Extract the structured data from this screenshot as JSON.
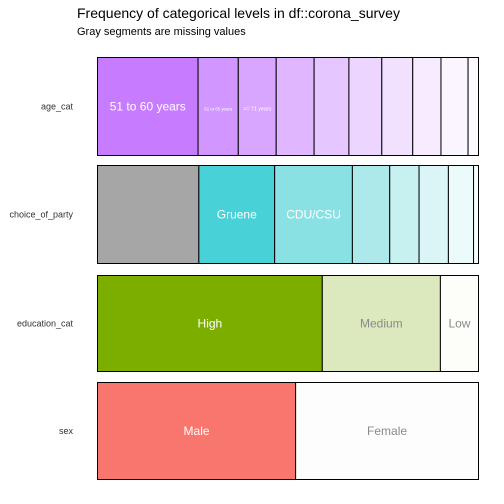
{
  "chart_data": {
    "type": "bar",
    "orientation": "horizontal",
    "stacked": true,
    "normalized": true,
    "title": "Frequency of categorical levels in df::corona_survey",
    "subtitle": "Gray segments are missing values",
    "variables": [
      {
        "name": "age_cat",
        "segments": [
          {
            "label": "51 to 60 years",
            "value": 0.26,
            "color": "#c77cff",
            "text_color": "#ffffff"
          },
          {
            "label": "61 to 65 years",
            "value": 0.104,
            "color": "#d196ff",
            "text_color": "#ffffff"
          },
          {
            "label": ">= 71 years",
            "value": 0.098,
            "color": "#d8a6ff",
            "text_color": "#ffffff"
          },
          {
            "label": "",
            "value": 0.098,
            "color": "#dfb6ff",
            "text_color": "#ffffff"
          },
          {
            "label": "",
            "value": 0.09,
            "color": "#e6c6ff",
            "text_color": "#ffffff"
          },
          {
            "label": "",
            "value": 0.085,
            "color": "#ecd5ff",
            "text_color": "#ffffff"
          },
          {
            "label": "",
            "value": 0.08,
            "color": "#f1e1ff",
            "text_color": "#ffffff"
          },
          {
            "label": "",
            "value": 0.073,
            "color": "#f6ebff",
            "text_color": "#ffffff"
          },
          {
            "label": "",
            "value": 0.07,
            "color": "#fbf5ff",
            "text_color": "#ffffff"
          },
          {
            "label": "",
            "value": 0.027,
            "color": "#fdf9ff",
            "text_color": "#ffffff"
          }
        ]
      },
      {
        "name": "choice_of_party",
        "segments": [
          {
            "label": "",
            "value": 0.266,
            "color": "#a6a6a6",
            "text_color": "#ffffff"
          },
          {
            "label": "Gruene",
            "value": 0.199,
            "color": "#48d1d6",
            "text_color": "#ffffff"
          },
          {
            "label": "CDU/CSU",
            "value": 0.204,
            "color": "#8ae1e4",
            "text_color": "#ffffff"
          },
          {
            "label": "",
            "value": 0.098,
            "color": "#ade8ea",
            "text_color": "#ffffff"
          },
          {
            "label": "",
            "value": 0.077,
            "color": "#c7f0f1",
            "text_color": "#ffffff"
          },
          {
            "label": "",
            "value": 0.077,
            "color": "#dbf5f6",
            "text_color": "#ffffff"
          },
          {
            "label": "",
            "value": 0.066,
            "color": "#ebfafa",
            "text_color": "#ffffff"
          },
          {
            "label": "",
            "value": 0.013,
            "color": "#f7fdfd",
            "text_color": "#ffffff"
          }
        ]
      },
      {
        "name": "education_cat",
        "segments": [
          {
            "label": "High",
            "value": 0.59,
            "color": "#7cae00",
            "text_color": "#ffffff"
          },
          {
            "label": "Medium",
            "value": 0.31,
            "color": "#dce8bd",
            "text_color": "#8a8a8a"
          },
          {
            "label": "Low",
            "value": 0.1,
            "color": "#fdfdfa",
            "text_color": "#8a8a8a"
          }
        ]
      },
      {
        "name": "sex",
        "segments": [
          {
            "label": "Male",
            "value": 0.52,
            "color": "#f8766d",
            "text_color": "#ffffff"
          },
          {
            "label": "Female",
            "value": 0.48,
            "color": "#fdfdfd",
            "text_color": "#8a8a8a"
          }
        ]
      }
    ]
  }
}
